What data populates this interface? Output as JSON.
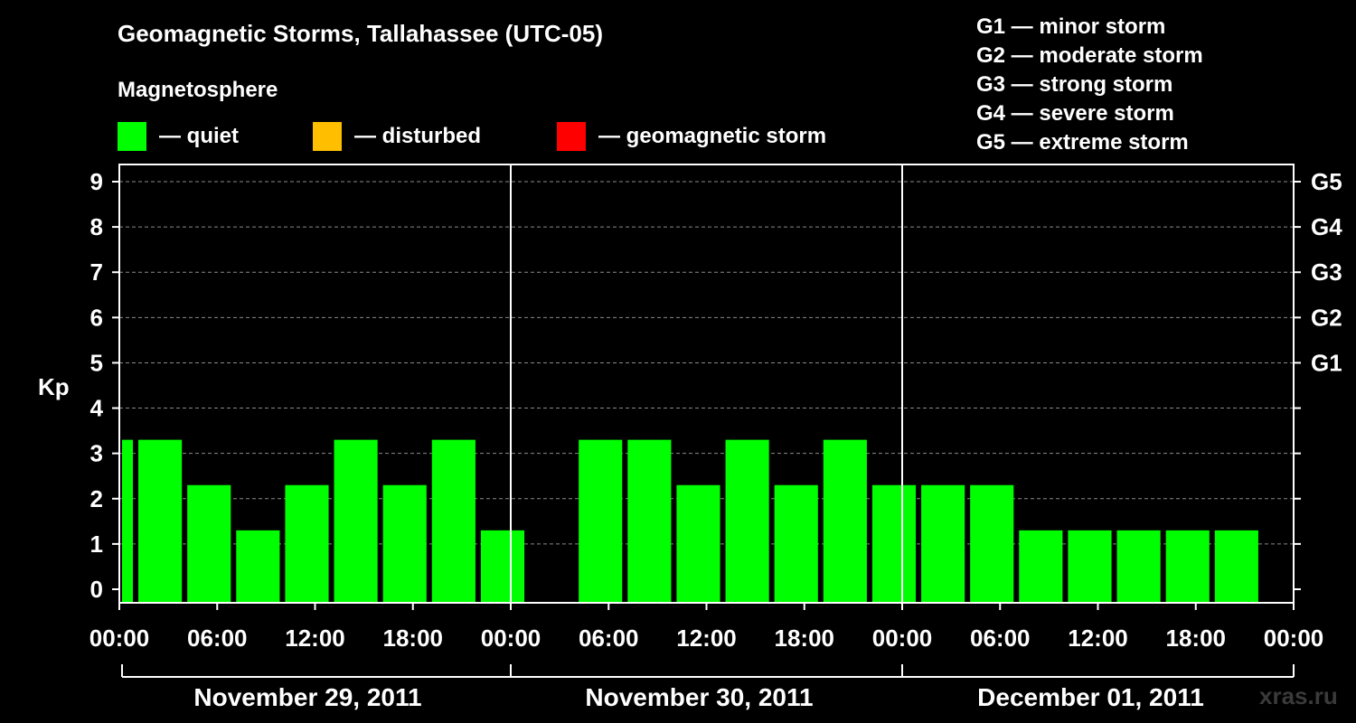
{
  "chart_data": {
    "type": "bar",
    "title": "Geomagnetic Storms, Tallahassee (UTC-05)",
    "legend": {
      "heading": "Magnetosphere",
      "items": [
        {
          "label": "— quiet",
          "color": "#00ff00"
        },
        {
          "label": "— disturbed",
          "color": "#ffbf00"
        },
        {
          "label": "— geomagnetic storm",
          "color": "#ff0000"
        }
      ],
      "placement": "top-left"
    },
    "storm_scale": [
      "G1 — minor storm",
      "G2 — moderate storm",
      "G3 — strong storm",
      "G4 — severe storm",
      "G5 — extreme storm"
    ],
    "ylabel": "Kp",
    "ylim": [
      0,
      9
    ],
    "y_ticks": [
      "0",
      "1",
      "2",
      "3",
      "4",
      "5",
      "6",
      "7",
      "8",
      "9"
    ],
    "right_ticks": [
      {
        "label": "G1",
        "value": 5
      },
      {
        "label": "G2",
        "value": 6
      },
      {
        "label": "G3",
        "value": 7
      },
      {
        "label": "G4",
        "value": 8
      },
      {
        "label": "G5",
        "value": 9
      }
    ],
    "xlim_hours": [
      0,
      72
    ],
    "x_ticks": [
      {
        "label": "00:00",
        "hour": 0
      },
      {
        "label": "06:00",
        "hour": 6
      },
      {
        "label": "12:00",
        "hour": 12
      },
      {
        "label": "18:00",
        "hour": 18
      },
      {
        "label": "00:00",
        "hour": 24
      },
      {
        "label": "06:00",
        "hour": 30
      },
      {
        "label": "12:00",
        "hour": 36
      },
      {
        "label": "18:00",
        "hour": 42
      },
      {
        "label": "00:00",
        "hour": 48
      },
      {
        "label": "06:00",
        "hour": 54
      },
      {
        "label": "12:00",
        "hour": 60
      },
      {
        "label": "18:00",
        "hour": 66
      },
      {
        "label": "00:00",
        "hour": 72
      }
    ],
    "days": [
      "November 29, 2011",
      "November 30, 2011",
      "December 01, 2011"
    ],
    "grid": true,
    "series": [
      {
        "bars": [
          {
            "start": 0,
            "end": 1,
            "kp": 3
          },
          {
            "start": 1,
            "end": 4,
            "kp": 3
          },
          {
            "start": 4,
            "end": 7,
            "kp": 2
          },
          {
            "start": 7,
            "end": 10,
            "kp": 1
          },
          {
            "start": 10,
            "end": 13,
            "kp": 2
          },
          {
            "start": 13,
            "end": 16,
            "kp": 3
          },
          {
            "start": 16,
            "end": 19,
            "kp": 2
          },
          {
            "start": 19,
            "end": 22,
            "kp": 3
          },
          {
            "start": 22,
            "end": 25,
            "kp": 1
          },
          {
            "start": 28,
            "end": 31,
            "kp": 3
          },
          {
            "start": 31,
            "end": 34,
            "kp": 3
          },
          {
            "start": 34,
            "end": 37,
            "kp": 2
          },
          {
            "start": 37,
            "end": 40,
            "kp": 3
          },
          {
            "start": 40,
            "end": 43,
            "kp": 2
          },
          {
            "start": 43,
            "end": 46,
            "kp": 3
          },
          {
            "start": 46,
            "end": 49,
            "kp": 2
          },
          {
            "start": 49,
            "end": 52,
            "kp": 2
          },
          {
            "start": 52,
            "end": 55,
            "kp": 2
          },
          {
            "start": 55,
            "end": 58,
            "kp": 1
          },
          {
            "start": 58,
            "end": 61,
            "kp": 1
          },
          {
            "start": 61,
            "end": 64,
            "kp": 1
          },
          {
            "start": 64,
            "end": 67,
            "kp": 1
          },
          {
            "start": 67,
            "end": 70,
            "kp": 1
          }
        ]
      }
    ]
  },
  "watermark": "xras.ru"
}
